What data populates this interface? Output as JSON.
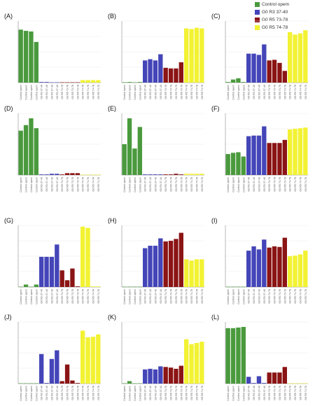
{
  "legend": {
    "items": [
      {
        "label": "Control opem",
        "color": "#4a9a3d"
      },
      {
        "label": "G0 R3 37-40",
        "color": "#4445b8"
      },
      {
        "label": "G0 R5 73-78",
        "color": "#8b1414"
      },
      {
        "label": "G0 R5 74-78",
        "color": "#f2f233"
      }
    ]
  },
  "chart_data": [
    {
      "type": "bar",
      "panel": "(A)",
      "categories": [
        "Control opem",
        "Control opem",
        "Control opem",
        "Control opem",
        "G0 R3 37-40",
        "G0 R3 37-40",
        "G0 R3 37-40",
        "G0 R3 37-40",
        "G0 R5 73-78",
        "G0 R5 73-78",
        "G0 R5 73-78",
        "G0 R5 73-78",
        "G0 R5 74-78",
        "G0 R5 74-78",
        "G0 R5 74-78",
        "G0 R5 74-78"
      ],
      "values": [
        86,
        84,
        83,
        66,
        1,
        1,
        0.5,
        0.5,
        0.5,
        0.5,
        0.5,
        0.5,
        4,
        4,
        4,
        4
      ],
      "ylim": [
        0,
        100
      ]
    },
    {
      "type": "bar",
      "panel": "(B)",
      "categories": [
        "Control opem",
        "Control opem",
        "Control opem",
        "Control opem",
        "G0 R3 37-40",
        "G0 R3 37-40",
        "G0 R3 37-40",
        "G0 R3 37-40",
        "G0 R5 73-78",
        "G0 R5 73-78",
        "G0 R5 73-78",
        "G0 R5 73-78",
        "G0 R5 74-78",
        "G0 R5 74-78",
        "G0 R5 74-78",
        "G0 R5 74-78"
      ],
      "values": [
        0.5,
        1,
        0.5,
        1,
        36,
        38,
        36,
        46,
        24,
        23,
        23,
        33,
        88,
        87,
        89,
        88
      ],
      "ylim": [
        0,
        100
      ]
    },
    {
      "type": "bar",
      "panel": "(C)",
      "categories": [
        "Control opem",
        "Control opem",
        "Control opem",
        "Control opem",
        "G0 R3 37-40",
        "G0 R3 37-40",
        "G0 R3 37-40",
        "G0 R3 37-40",
        "G0 R5 73-78",
        "G0 R5 73-78",
        "G0 R5 73-78",
        "G0 R5 73-78",
        "G0 R5 74-78",
        "G0 R5 74-78",
        "G0 R5 74-78",
        "G0 R5 74-78"
      ],
      "values": [
        1,
        5,
        7,
        1,
        47,
        47,
        45,
        62,
        36,
        37,
        32,
        19,
        82,
        78,
        80,
        85
      ],
      "ylim": [
        0,
        100
      ]
    },
    {
      "type": "bar",
      "panel": "(D)",
      "categories": [
        "Control opem",
        "Control opem",
        "Control opem",
        "Control opem",
        "G0 R3 37-40",
        "G0 R3 37-40",
        "G0 R3 37-40",
        "G0 R3 37-40",
        "G0 R5 73-78",
        "G0 R5 73-78",
        "G0 R5 73-78",
        "G0 R5 73-78",
        "G0 R5 74-78",
        "G0 R5 74-78",
        "G0 R5 74-78",
        "G0 R5 74-78"
      ],
      "values": [
        72,
        81,
        92,
        76,
        1,
        1,
        2,
        2,
        1,
        3,
        3,
        3,
        0.5,
        0.5,
        0.5,
        0.5
      ],
      "ylim": [
        0,
        100
      ]
    },
    {
      "type": "bar",
      "panel": "(E)",
      "categories": [
        "Control opem",
        "Control opem",
        "Control opem",
        "Control opem",
        "G0 R3 37-40",
        "G0 R3 37-40",
        "G0 R3 37-40",
        "G0 R3 37-40",
        "G0 R5 73-78",
        "G0 R5 73-78",
        "G0 R5 73-78",
        "G0 R5 73-78",
        "G0 R5 74-78",
        "G0 R5 74-78",
        "G0 R5 74-78",
        "G0 R5 74-78"
      ],
      "values": [
        50,
        92,
        43,
        78,
        1,
        1,
        1,
        1,
        1,
        1,
        2,
        1,
        2,
        2,
        2,
        2
      ],
      "ylim": [
        0,
        100
      ]
    },
    {
      "type": "bar",
      "panel": "(F)",
      "categories": [
        "Control opem",
        "Control opem",
        "Control opem",
        "Control opem",
        "G0 R3 37-40",
        "G0 R3 37-40",
        "G0 R3 37-40",
        "G0 R3 37-40",
        "G0 R5 73-78",
        "G0 R5 73-78",
        "G0 R5 73-78",
        "G0 R5 73-78",
        "G0 R5 74-78",
        "G0 R5 74-78",
        "G0 R5 74-78",
        "G0 R5 74-78"
      ],
      "values": [
        34,
        36,
        37,
        30,
        63,
        64,
        64,
        79,
        52,
        52,
        52,
        57,
        74,
        75,
        76,
        77
      ],
      "ylim": [
        0,
        100
      ]
    },
    {
      "type": "bar",
      "panel": "(G)",
      "categories": [
        "Control opem",
        "Control opem",
        "Control opem",
        "Control opem",
        "G0 R3 37-40",
        "G0 R3 37-40",
        "G0 R3 37-40",
        "G0 R3 37-40",
        "G0 R5 73-78",
        "G0 R5 73-78",
        "G0 R5 73-78",
        "G0 R5 73-78",
        "G0 R5 74-78",
        "G0 R5 74-78",
        "G0 R5 74-78",
        "G0 R5 74-78"
      ],
      "values": [
        0.5,
        4,
        0.5,
        4,
        49,
        49,
        49,
        69,
        27,
        11,
        30,
        1,
        98,
        96,
        1,
        1
      ],
      "ylim": [
        0,
        100
      ]
    },
    {
      "type": "bar",
      "panel": "(H)",
      "categories": [
        "Control opem",
        "Control opem",
        "Control opem",
        "Control opem",
        "G0 R3 37-40",
        "G0 R3 37-40",
        "G0 R3 37-40",
        "G0 R3 37-40",
        "G0 R5 73-78",
        "G0 R5 73-78",
        "G0 R5 73-78",
        "G0 R5 73-78",
        "G0 R5 74-78",
        "G0 R5 74-78",
        "G0 R5 74-78",
        "G0 R5 74-78"
      ],
      "values": [
        0.5,
        0.5,
        0.5,
        0.5,
        63,
        67,
        67,
        79,
        74,
        75,
        78,
        88,
        45,
        43,
        45,
        45
      ],
      "ylim": [
        0,
        100
      ]
    },
    {
      "type": "bar",
      "panel": "(I)",
      "categories": [
        "Control opem",
        "Control opem",
        "Control opem",
        "Control opem",
        "G0 R3 37-40",
        "G0 R3 37-40",
        "G0 R3 37-40",
        "G0 R3 37-40",
        "G0 R5 73-78",
        "G0 R5 73-78",
        "G0 R5 73-78",
        "G0 R5 73-78",
        "G0 R5 74-78",
        "G0 R5 74-78",
        "G0 R5 74-78",
        "G0 R5 74-78"
      ],
      "values": [
        0.5,
        0.5,
        0.5,
        0.5,
        59,
        66,
        61,
        77,
        64,
        66,
        65,
        80,
        50,
        51,
        53,
        59
      ],
      "ylim": [
        0,
        100
      ]
    },
    {
      "type": "bar",
      "panel": "(J)",
      "categories": [
        "Control opem",
        "Control opem",
        "Control opem",
        "Control opem",
        "G0 R3 37-40",
        "G0 R3 37-40",
        "G0 R3 37-40",
        "G0 R3 37-40",
        "G0 R5 73-78",
        "G0 R5 73-78",
        "G0 R5 73-78",
        "G0 R5 73-78",
        "G0 R5 74-78",
        "G0 R5 74-78",
        "G0 R5 74-78",
        "G0 R5 74-78"
      ],
      "values": [
        0.5,
        0.5,
        0.5,
        0.5,
        48,
        1,
        40,
        54,
        4,
        31,
        5,
        1,
        86,
        75,
        76,
        80
      ],
      "ylim": [
        0,
        100
      ]
    },
    {
      "type": "bar",
      "panel": "(K)",
      "categories": [
        "Control opem",
        "Control opem",
        "Control opem",
        "Control opem",
        "G0 R3 37-40",
        "G0 R3 37-40",
        "G0 R3 37-40",
        "G0 R3 37-40",
        "G0 R5 73-78",
        "G0 R5 73-78",
        "G0 R5 73-78",
        "G0 R5 73-78",
        "G0 R5 74-78",
        "G0 R5 74-78",
        "G0 R5 74-78",
        "G0 R5 74-78"
      ],
      "values": [
        0.5,
        4,
        0.5,
        0.5,
        23,
        24,
        23,
        28,
        27,
        26,
        24,
        29,
        72,
        64,
        66,
        68
      ],
      "ylim": [
        0,
        100
      ]
    },
    {
      "type": "bar",
      "panel": "(L)",
      "categories": [
        "Control opem",
        "Control opem",
        "Control opem",
        "Control opem",
        "G0 R3 37-40",
        "G0 R3 37-40",
        "G0 R3 37-40",
        "G0 R3 37-40",
        "G0 R5 73-78",
        "G0 R5 73-78",
        "G0 R5 73-78",
        "G0 R5 73-78",
        "G0 R5 74-78",
        "G0 R5 74-78",
        "G0 R5 74-78",
        "G0 R5 74-78"
      ],
      "values": [
        90,
        90,
        91,
        92,
        11,
        1,
        12,
        1,
        18,
        18,
        18,
        27,
        0.5,
        0.5,
        0.5,
        0.5
      ],
      "ylim": [
        0,
        100
      ]
    }
  ]
}
